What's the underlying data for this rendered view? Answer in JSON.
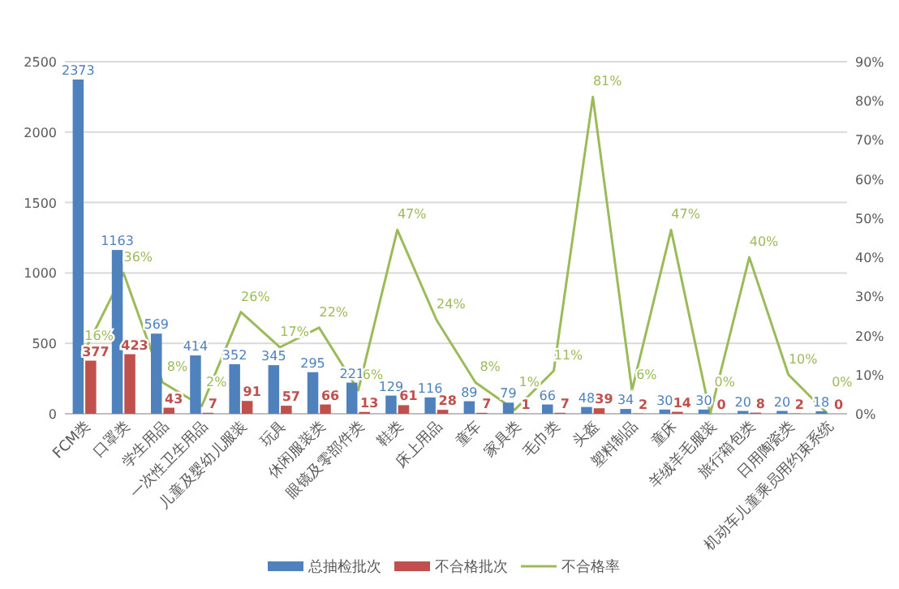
{
  "chart_data": {
    "type": "bar",
    "categories": [
      "FCM类",
      "口罩类",
      "学生用品",
      "一次性卫生用品",
      "儿童及婴幼儿服装",
      "玩具",
      "休闲服装类",
      "眼镜及零部件类",
      "鞋类",
      "床上用品",
      "童车",
      "家具类",
      "毛巾类",
      "头盔",
      "塑料制品",
      "童床",
      "羊绒羊毛服装",
      "旅行箱包类",
      "日用陶瓷类",
      "机动车儿童乘员用约束系统"
    ],
    "series": [
      {
        "name": "总抽检批次",
        "color": "#4f81bd",
        "values": [
          2373,
          1163,
          569,
          414,
          352,
          345,
          295,
          221,
          129,
          116,
          89,
          79,
          66,
          48,
          34,
          30,
          30,
          20,
          20,
          18
        ]
      },
      {
        "name": "不合格批次",
        "color": "#c0504d",
        "values": [
          377,
          423,
          43,
          7,
          91,
          57,
          66,
          13,
          61,
          28,
          7,
          1,
          7,
          39,
          2,
          14,
          0,
          8,
          2,
          0
        ]
      },
      {
        "name": "不合格率",
        "type": "line",
        "axis": "y2",
        "color": "#9bbb59",
        "values": [
          16,
          36,
          8,
          2,
          26,
          17,
          22,
          6,
          47,
          24,
          8,
          1,
          11,
          81,
          6,
          47,
          0,
          40,
          10,
          0
        ],
        "value_labels": [
          "16%",
          "36%",
          "8%",
          "2%",
          "26%",
          "17%",
          "22%",
          "6%",
          "47%",
          "24%",
          "8%",
          "1%",
          "11%",
          "81%",
          "6%",
          "47%",
          "0%",
          "40%",
          "10%",
          "0%"
        ]
      }
    ],
    "ylim": [
      0,
      2500
    ],
    "yticks": [
      0,
      500,
      1000,
      1500,
      2000,
      2500
    ],
    "y2lim": [
      0,
      90
    ],
    "y2ticks": [
      {
        "value": 0,
        "label": "0%"
      },
      {
        "value": 10,
        "label": "10%"
      },
      {
        "value": 20,
        "label": "20%"
      },
      {
        "value": 30,
        "label": "30%"
      },
      {
        "value": 40,
        "label": "40%"
      },
      {
        "value": 50,
        "label": "50%"
      },
      {
        "value": 60,
        "label": "60%"
      },
      {
        "value": 70,
        "label": "70%"
      },
      {
        "value": 80,
        "label": "80%"
      },
      {
        "value": 90,
        "label": "90%"
      }
    ],
    "data_labels": true,
    "grid": "y",
    "legend": "bottom",
    "marker": "none"
  }
}
